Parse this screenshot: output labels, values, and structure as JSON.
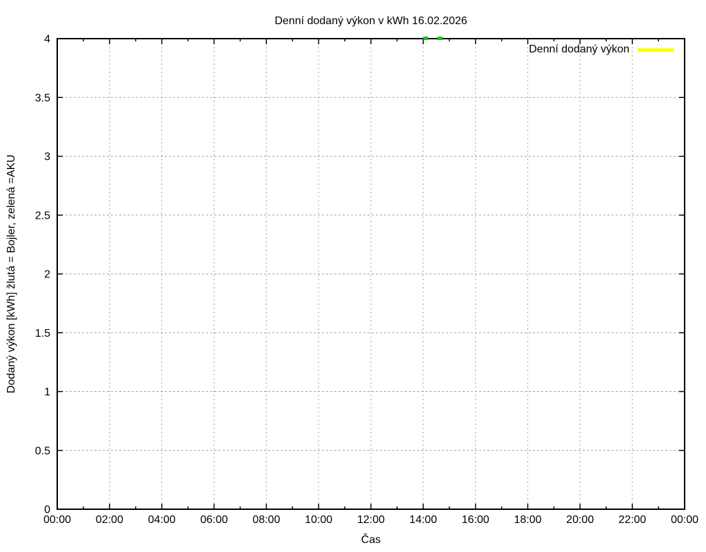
{
  "chart_data": {
    "type": "line",
    "title": "Denní dodaný výkon v kWh 16.02.2026",
    "xlabel": "Čas",
    "ylabel": "Dodaný výkon [kWh]  žlutá = Bojler, zelená =AKU",
    "xlim_hours": [
      0,
      24
    ],
    "ylim": [
      0,
      4
    ],
    "x_major_step_hours": 2,
    "x_minor_step_hours": 1,
    "y_tick_step": 0.5,
    "x_tick_labels": [
      "00:00",
      "02:00",
      "04:00",
      "06:00",
      "08:00",
      "10:00",
      "12:00",
      "14:00",
      "16:00",
      "18:00",
      "20:00",
      "22:00",
      "00:00"
    ],
    "y_tick_labels": [
      "0",
      "0.5",
      "1",
      "1.5",
      "2",
      "2.5",
      "3",
      "3.5",
      "4"
    ],
    "grid": {
      "show": true,
      "color": "#a0a0a0"
    },
    "axis_color": "#000000",
    "background": "#ffffff",
    "legend": [
      {
        "label": "Denní dodaný výkon",
        "color": "#ffff00"
      }
    ],
    "series": [
      {
        "name": "AKU",
        "color": "#00cc00",
        "y_value": 4.0,
        "segments_hours": [
          [
            14.0,
            14.18
          ],
          [
            14.55,
            14.73
          ]
        ]
      }
    ]
  }
}
